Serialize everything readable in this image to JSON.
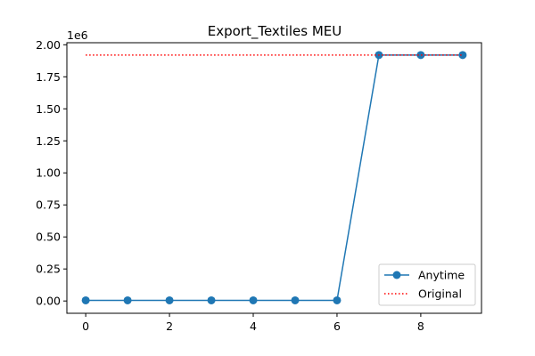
{
  "chart_data": {
    "type": "line",
    "title": "Export_Textiles MEU",
    "xlabel": "",
    "ylabel": "",
    "y_offset_label": "1e6",
    "xlim": [
      -0.45,
      9.45
    ],
    "ylim": [
      -0.096,
      2.016
    ],
    "x_ticks": [
      0,
      2,
      4,
      6,
      8
    ],
    "x_tick_labels": [
      "0",
      "2",
      "4",
      "6",
      "8"
    ],
    "y_ticks": [
      0.0,
      0.25,
      0.5,
      0.75,
      1.0,
      1.25,
      1.5,
      1.75,
      2.0
    ],
    "y_tick_labels": [
      "0.00",
      "0.25",
      "0.50",
      "0.75",
      "1.00",
      "1.25",
      "1.50",
      "1.75",
      "2.00"
    ],
    "legend_position": "lower-right",
    "series": [
      {
        "name": "Anytime",
        "style": "solid-with-markers",
        "color": "#1f77b4",
        "x": [
          0,
          1,
          2,
          3,
          4,
          5,
          6,
          7,
          8,
          9
        ],
        "values": [
          0.005,
          0.005,
          0.005,
          0.005,
          0.005,
          0.005,
          0.005,
          1.92,
          1.92,
          1.92
        ]
      },
      {
        "name": "Original",
        "style": "dotted",
        "color": "#ff0000",
        "x": [
          0,
          9
        ],
        "values": [
          1.92,
          1.92
        ]
      }
    ]
  }
}
